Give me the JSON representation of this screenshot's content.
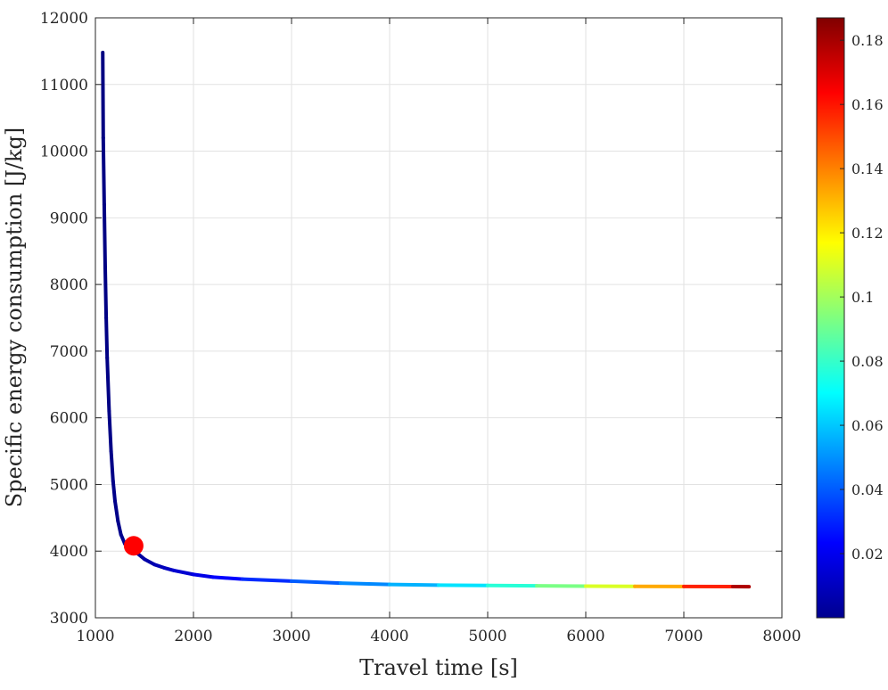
{
  "chart_data": {
    "type": "line",
    "title": "",
    "xlabel": "Travel time [s]",
    "ylabel": "Specific energy consumption [J/kg]",
    "xlim": [
      1000,
      8000
    ],
    "ylim": [
      3000,
      12000
    ],
    "x_ticks": [
      1000,
      2000,
      3000,
      4000,
      5000,
      6000,
      7000,
      8000
    ],
    "y_ticks": [
      3000,
      4000,
      5000,
      6000,
      7000,
      8000,
      9000,
      10000,
      11000,
      12000
    ],
    "x_tick_labels": [
      "1000",
      "2000",
      "3000",
      "4000",
      "5000",
      "6000",
      "7000",
      "8000"
    ],
    "y_tick_labels": [
      "3000",
      "4000",
      "5000",
      "6000",
      "7000",
      "8000",
      "9000",
      "10000",
      "11000",
      "12000"
    ],
    "grid": true,
    "series": [
      {
        "x": [
          1075,
          1080,
          1090,
          1100,
          1110,
          1120,
          1140,
          1160,
          1180,
          1200,
          1230,
          1260,
          1300,
          1350,
          1400,
          1500,
          1600,
          1700,
          1800,
          2000,
          2200,
          2500,
          3000,
          3500,
          4000,
          4500,
          5000,
          5500,
          6000,
          6500,
          7000,
          7500,
          7665
        ],
        "y": [
          11480,
          10200,
          9200,
          8250,
          7500,
          6900,
          6100,
          5500,
          5050,
          4750,
          4450,
          4250,
          4110,
          4050,
          4000,
          3880,
          3800,
          3750,
          3710,
          3650,
          3610,
          3580,
          3550,
          3520,
          3500,
          3490,
          3485,
          3480,
          3475,
          3472,
          3470,
          3468,
          3467
        ],
        "color_values": [
          0.0005,
          0.0005,
          0.0006,
          0.0006,
          0.0007,
          0.0008,
          0.001,
          0.0012,
          0.0014,
          0.0016,
          0.002,
          0.0024,
          0.003,
          0.0038,
          0.0046,
          0.0065,
          0.0085,
          0.011,
          0.013,
          0.017,
          0.021,
          0.027,
          0.036,
          0.045,
          0.052,
          0.06,
          0.07,
          0.085,
          0.1,
          0.12,
          0.145,
          0.17,
          0.187
        ]
      }
    ],
    "marker": {
      "x": 1390,
      "y": 4080,
      "color": "#ff0000"
    },
    "colorbar": {
      "colormap": "jet",
      "range": [
        0,
        0.187
      ],
      "ticks": [
        0.02,
        0.04,
        0.06,
        0.08,
        0.1,
        0.12,
        0.14,
        0.16,
        0.18
      ],
      "tick_labels": [
        "0.02",
        "0.04",
        "0.06",
        "0.08",
        "0.1",
        "0.12",
        "0.14",
        "0.16",
        "0.18"
      ]
    }
  }
}
